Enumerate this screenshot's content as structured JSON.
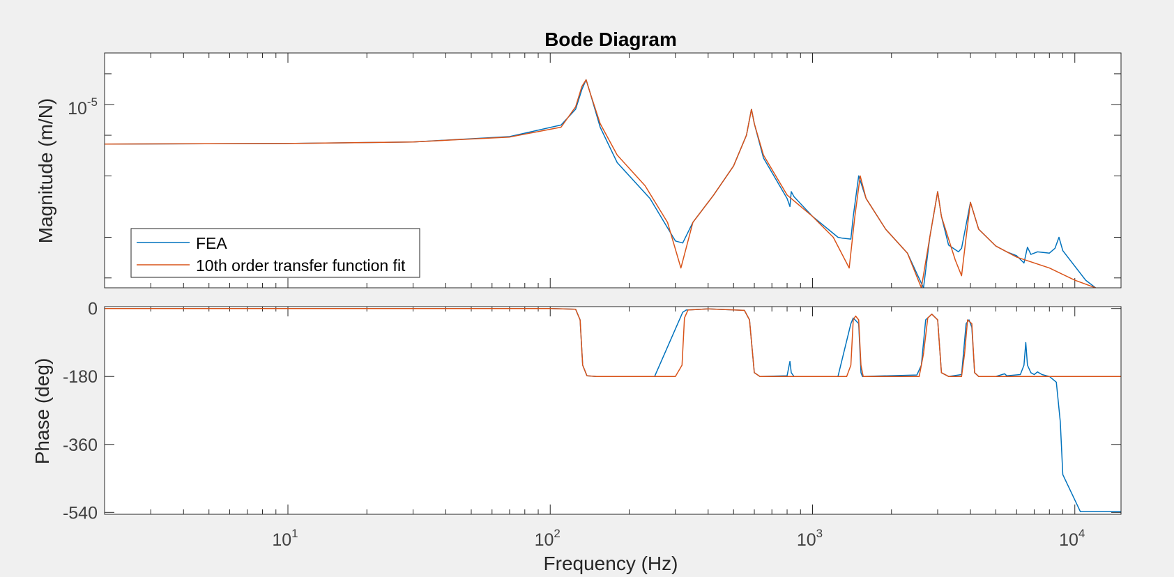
{
  "chart_data": {
    "type": "line",
    "title": "Bode Diagram",
    "xlabel": "Frequency  (Hz)",
    "xscale": "log",
    "xlim": [
      2,
      15000
    ],
    "x_ticks": [
      {
        "value": 10,
        "base": "10",
        "exp": "1"
      },
      {
        "value": 100,
        "base": "10",
        "exp": "2"
      },
      {
        "value": 1000,
        "base": "10",
        "exp": "3"
      },
      {
        "value": 10000,
        "base": "10",
        "exp": "4"
      }
    ],
    "grid": false,
    "legend": {
      "placement": "lower-left",
      "entries": [
        "FEA",
        "10th order transfer function fit"
      ]
    },
    "colors": {
      "FEA": "#0072BD",
      "fit": "#D95319"
    },
    "magnitude_panel": {
      "ylabel": "Magnitude (m/N)",
      "yscale": "log",
      "ylim": [
        1.6e-07,
        3.2e-05
      ],
      "y_ticks": [
        {
          "value": 1e-05,
          "base": "10",
          "exp": "-5"
        }
      ],
      "series": [
        {
          "name": "FEA",
          "points": [
            [
              2,
              4.1e-06
            ],
            [
              10,
              4.15e-06
            ],
            [
              30,
              4.3e-06
            ],
            [
              70,
              4.85e-06
            ],
            [
              110,
              6.3e-06
            ],
            [
              125,
              9e-06
            ],
            [
              132,
              1.4e-05
            ],
            [
              137,
              1.75e-05
            ],
            [
              142,
              1.3e-05
            ],
            [
              155,
              6e-06
            ],
            [
              180,
              2.7e-06
            ],
            [
              240,
              1.2e-06
            ],
            [
              300,
              4.6e-07
            ],
            [
              320,
              4.4e-07
            ],
            [
              350,
              7e-07
            ],
            [
              420,
              1.3e-06
            ],
            [
              500,
              2.5e-06
            ],
            [
              560,
              5e-06
            ],
            [
              585,
              9e-06
            ],
            [
              600,
              6.5e-06
            ],
            [
              650,
              3e-06
            ],
            [
              800,
              1.2e-06
            ],
            [
              820,
              1e-06
            ],
            [
              830,
              1.4e-06
            ],
            [
              850,
              1.25e-06
            ],
            [
              1000,
              8e-07
            ],
            [
              1250,
              5e-07
            ],
            [
              1300,
              4.9e-07
            ],
            [
              1400,
              4.8e-07
            ],
            [
              1430,
              8e-07
            ],
            [
              1500,
              2e-06
            ],
            [
              1600,
              1.2e-06
            ],
            [
              1900,
              6e-07
            ],
            [
              2300,
              3.5e-07
            ],
            [
              2500,
              2.2e-07
            ],
            [
              2650,
              1.6e-07
            ],
            [
              2800,
              5e-07
            ],
            [
              3000,
              1.4e-06
            ],
            [
              3100,
              8e-07
            ],
            [
              3300,
              4.2e-07
            ],
            [
              3600,
              3.6e-07
            ],
            [
              3700,
              3.9e-07
            ],
            [
              4000,
              1.1e-06
            ],
            [
              4300,
              6e-07
            ],
            [
              5000,
              4.1e-07
            ],
            [
              5500,
              3.6e-07
            ],
            [
              6000,
              3.3e-07
            ],
            [
              6400,
              2.8e-07
            ],
            [
              6600,
              4e-07
            ],
            [
              6800,
              3.4e-07
            ],
            [
              7200,
              3.6e-07
            ],
            [
              8000,
              3.5e-07
            ],
            [
              8400,
              3.9e-07
            ],
            [
              8700,
              5e-07
            ],
            [
              9000,
              3.7e-07
            ],
            [
              11000,
              1.9e-07
            ],
            [
              12000,
              1.6e-07
            ]
          ]
        },
        {
          "name": "10th order transfer function fit",
          "points": [
            [
              2,
              4.1e-06
            ],
            [
              10,
              4.15e-06
            ],
            [
              30,
              4.3e-06
            ],
            [
              70,
              4.8e-06
            ],
            [
              110,
              6e-06
            ],
            [
              125,
              9.5e-06
            ],
            [
              132,
              1.5e-05
            ],
            [
              137,
              1.75e-05
            ],
            [
              142,
              1.3e-05
            ],
            [
              155,
              6.5e-06
            ],
            [
              180,
              3.2e-06
            ],
            [
              230,
              1.6e-06
            ],
            [
              280,
              7e-07
            ],
            [
              315,
              2.5e-07
            ],
            [
              350,
              7e-07
            ],
            [
              420,
              1.3e-06
            ],
            [
              500,
              2.5e-06
            ],
            [
              560,
              5e-06
            ],
            [
              585,
              9e-06
            ],
            [
              600,
              6.5e-06
            ],
            [
              650,
              3.2e-06
            ],
            [
              800,
              1.3e-06
            ],
            [
              1000,
              8e-07
            ],
            [
              1200,
              5e-07
            ],
            [
              1380,
              2.5e-07
            ],
            [
              1450,
              8e-07
            ],
            [
              1520,
              2e-06
            ],
            [
              1600,
              1.2e-06
            ],
            [
              1900,
              6e-07
            ],
            [
              2300,
              3.5e-07
            ],
            [
              2600,
              1.6e-07
            ],
            [
              2800,
              5e-07
            ],
            [
              3000,
              1.4e-06
            ],
            [
              3100,
              8e-07
            ],
            [
              3500,
              3e-07
            ],
            [
              3700,
              2.1e-07
            ],
            [
              3850,
              5e-07
            ],
            [
              4000,
              1.1e-06
            ],
            [
              4300,
              6e-07
            ],
            [
              5000,
              4.1e-07
            ],
            [
              6000,
              3.2e-07
            ],
            [
              8000,
              2.5e-07
            ],
            [
              10000,
              1.9e-07
            ],
            [
              12000,
              1.6e-07
            ]
          ]
        }
      ]
    },
    "phase_panel": {
      "ylabel": "Phase (deg)",
      "ylim": [
        -545,
        5
      ],
      "y_ticks": [
        0,
        -180,
        -360,
        -540
      ],
      "series": [
        {
          "name": "FEA",
          "points": [
            [
              2,
              0
            ],
            [
              100,
              0
            ],
            [
              125,
              -2
            ],
            [
              130,
              -30
            ],
            [
              133,
              -150
            ],
            [
              138,
              -178
            ],
            [
              150,
              -180
            ],
            [
              250,
              -180
            ],
            [
              320,
              -10
            ],
            [
              330,
              -4
            ],
            [
              400,
              -1
            ],
            [
              550,
              -5
            ],
            [
              575,
              -30
            ],
            [
              600,
              -170
            ],
            [
              630,
              -180
            ],
            [
              800,
              -178
            ],
            [
              820,
              -140
            ],
            [
              830,
              -170
            ],
            [
              850,
              -180
            ],
            [
              1250,
              -180
            ],
            [
              1400,
              -40
            ],
            [
              1430,
              -25
            ],
            [
              1500,
              -40
            ],
            [
              1530,
              -170
            ],
            [
              1550,
              -180
            ],
            [
              2500,
              -176
            ],
            [
              2600,
              -150
            ],
            [
              2700,
              -30
            ],
            [
              2850,
              -15
            ],
            [
              3000,
              -30
            ],
            [
              3100,
              -170
            ],
            [
              3300,
              -180
            ],
            [
              3700,
              -175
            ],
            [
              3850,
              -40
            ],
            [
              3950,
              -30
            ],
            [
              4050,
              -50
            ],
            [
              4150,
              -170
            ],
            [
              4300,
              -180
            ],
            [
              5000,
              -180
            ],
            [
              5400,
              -173
            ],
            [
              5500,
              -178
            ],
            [
              6200,
              -175
            ],
            [
              6400,
              -150
            ],
            [
              6500,
              -90
            ],
            [
              6600,
              -150
            ],
            [
              6800,
              -170
            ],
            [
              7000,
              -175
            ],
            [
              7200,
              -168
            ],
            [
              7500,
              -175
            ],
            [
              7800,
              -178
            ],
            [
              8000,
              -180
            ],
            [
              8500,
              -195
            ],
            [
              8800,
              -300
            ],
            [
              9000,
              -440
            ],
            [
              10500,
              -538
            ],
            [
              15000,
              -538
            ]
          ]
        },
        {
          "name": "10th order transfer function fit",
          "points": [
            [
              2,
              0
            ],
            [
              100,
              0
            ],
            [
              125,
              -2
            ],
            [
              130,
              -30
            ],
            [
              133,
              -150
            ],
            [
              138,
              -178
            ],
            [
              150,
              -180
            ],
            [
              300,
              -180
            ],
            [
              318,
              -150
            ],
            [
              325,
              -25
            ],
            [
              335,
              -4
            ],
            [
              400,
              -1
            ],
            [
              550,
              -5
            ],
            [
              575,
              -30
            ],
            [
              600,
              -170
            ],
            [
              630,
              -180
            ],
            [
              1350,
              -180
            ],
            [
              1400,
              -150
            ],
            [
              1430,
              -30
            ],
            [
              1460,
              -20
            ],
            [
              1500,
              -30
            ],
            [
              1530,
              -150
            ],
            [
              1560,
              -180
            ],
            [
              2550,
              -180
            ],
            [
              2650,
              -120
            ],
            [
              2750,
              -25
            ],
            [
              2850,
              -15
            ],
            [
              3000,
              -30
            ],
            [
              3100,
              -170
            ],
            [
              3300,
              -180
            ],
            [
              3700,
              -180
            ],
            [
              3800,
              -120
            ],
            [
              3900,
              -30
            ],
            [
              4050,
              -40
            ],
            [
              4150,
              -170
            ],
            [
              4300,
              -180
            ],
            [
              15000,
              -180
            ]
          ]
        }
      ]
    }
  }
}
